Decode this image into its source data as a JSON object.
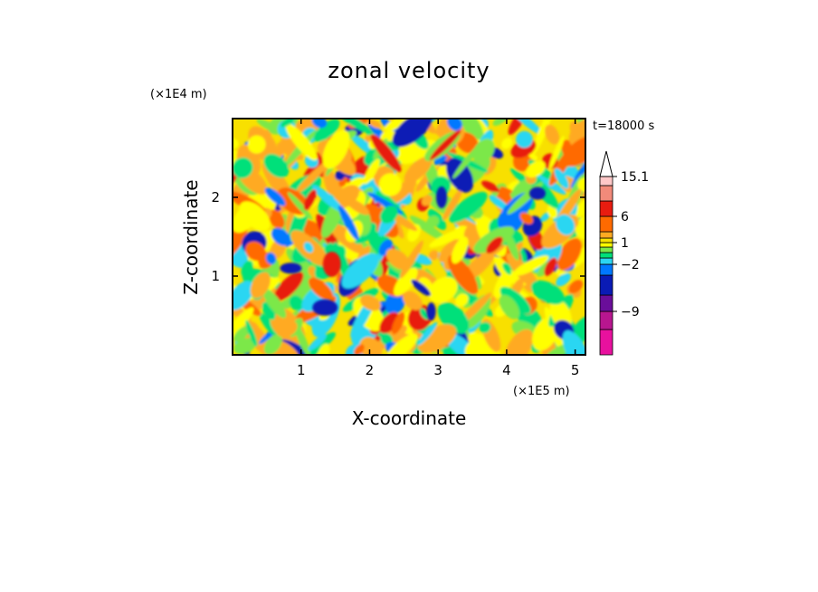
{
  "chart_data": {
    "type": "heatmap",
    "title": "zonal velocity",
    "xlabel": "X-coordinate",
    "ylabel": "Z-coordinate",
    "x_unit": "(×1E5 m)",
    "y_unit": "(×1E4 m)",
    "time_label": "t=18000 s",
    "xlim": [
      0,
      5.15
    ],
    "ylim": [
      0,
      3.0
    ],
    "x_ticks": [
      1,
      2,
      3,
      4,
      5
    ],
    "y_ticks": [
      1,
      2
    ],
    "colorbar": {
      "levels": [
        -15,
        -12,
        -9,
        -6,
        -3,
        -2,
        -1,
        0,
        0.5,
        1,
        1.5,
        3,
        6,
        9,
        12,
        15.1
      ],
      "colors": [
        "#e8119e",
        "#b8168f",
        "#6a0e9a",
        "#0a1bb5",
        "#0078ff",
        "#2bd6f2",
        "#00e07a",
        "#7be84a",
        "#ffff00",
        "#f8e000",
        "#ffaa22",
        "#ff6a00",
        "#e81c10",
        "#f28a7a",
        "#ffc8c8",
        "#ffffff"
      ],
      "tick_labels": [
        "15.1",
        "6",
        "1",
        "−2",
        "−9"
      ],
      "tick_values": [
        15.1,
        6,
        1,
        -2,
        -9
      ]
    },
    "grid": false
  }
}
